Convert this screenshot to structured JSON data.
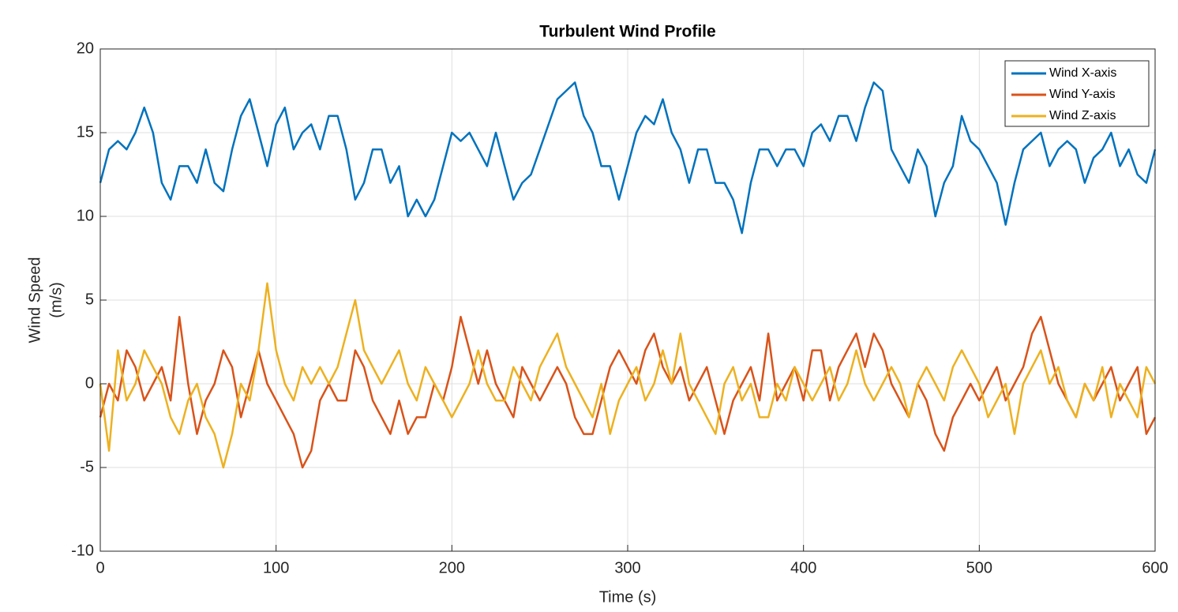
{
  "chart_data": {
    "type": "line",
    "title": "Turbulent Wind Profile",
    "xlabel": "Time (s)",
    "ylabel": [
      "Wind Speed",
      "(m/s)"
    ],
    "x": [
      0,
      5,
      10,
      15,
      20,
      25,
      30,
      35,
      40,
      45,
      50,
      55,
      60,
      65,
      70,
      75,
      80,
      85,
      90,
      95,
      100,
      105,
      110,
      115,
      120,
      125,
      130,
      135,
      140,
      145,
      150,
      155,
      160,
      165,
      170,
      175,
      180,
      185,
      190,
      195,
      200,
      205,
      210,
      215,
      220,
      225,
      230,
      235,
      240,
      245,
      250,
      255,
      260,
      265,
      270,
      275,
      280,
      285,
      290,
      295,
      300,
      305,
      310,
      315,
      320,
      325,
      330,
      335,
      340,
      345,
      350,
      355,
      360,
      365,
      370,
      375,
      380,
      385,
      390,
      395,
      400,
      405,
      410,
      415,
      420,
      425,
      430,
      435,
      440,
      445,
      450,
      455,
      460,
      465,
      470,
      475,
      480,
      485,
      490,
      495,
      500,
      505,
      510,
      515,
      520,
      525,
      530,
      535,
      540,
      545,
      550,
      555,
      560,
      565,
      570,
      575,
      580,
      585,
      590,
      595,
      600
    ],
    "series": [
      {
        "name": "Wind X-axis",
        "color": "#0072BD",
        "values": [
          12,
          14,
          14.5,
          14,
          15,
          16.5,
          15,
          12,
          11,
          13,
          13,
          12,
          14,
          12,
          11.5,
          14,
          16,
          17,
          15,
          13,
          15.5,
          16.5,
          14,
          15,
          15.5,
          14,
          16,
          16,
          14,
          11,
          12,
          14,
          14,
          12,
          13,
          10,
          11,
          10,
          11,
          13,
          15,
          14.5,
          15,
          14,
          13,
          15,
          13,
          11,
          12,
          12.5,
          14,
          15.5,
          17,
          17.5,
          18,
          16,
          15,
          13,
          13,
          11,
          13,
          15,
          16,
          15.5,
          17,
          15,
          14,
          12,
          14,
          14,
          12,
          12,
          11,
          9,
          12,
          14,
          14,
          13,
          14,
          14,
          13,
          15,
          15.5,
          14.5,
          16,
          16,
          14.5,
          16.5,
          18,
          17.5,
          14,
          13,
          12,
          14,
          13,
          10,
          12,
          13,
          16,
          14.5,
          14,
          13,
          12,
          9.5,
          12,
          14,
          14.5,
          15,
          13,
          14,
          14.5,
          14,
          12,
          13.5,
          14,
          15,
          13,
          14,
          12.5,
          12,
          14
        ]
      },
      {
        "name": "Wind Y-axis",
        "color": "#D95319",
        "values": [
          -2,
          0,
          -1,
          2,
          1,
          -1,
          0,
          1,
          -1,
          4,
          0,
          -3,
          -1,
          0,
          2,
          1,
          -2,
          0,
          2,
          0,
          -1,
          -2,
          -3,
          -5,
          -4,
          -1,
          0,
          -1,
          -1,
          2,
          1,
          -1,
          -2,
          -3,
          -1,
          -3,
          -2,
          -2,
          0,
          -1,
          1,
          4,
          2,
          0,
          2,
          0,
          -1,
          -2,
          1,
          0,
          -1,
          0,
          1,
          0,
          -2,
          -3,
          -3,
          -1,
          1,
          2,
          1,
          0,
          2,
          3,
          1,
          0,
          1,
          -1,
          0,
          1,
          -1,
          -3,
          -1,
          0,
          1,
          -1,
          3,
          -1,
          0,
          1,
          -1,
          2,
          2,
          -1,
          1,
          2,
          3,
          1,
          3,
          2,
          0,
          -1,
          -2,
          0,
          -1,
          -3,
          -4,
          -2,
          -1,
          0,
          -1,
          0,
          1,
          -1,
          0,
          1,
          3,
          4,
          2,
          0,
          -1,
          -2,
          0,
          -1,
          0,
          1,
          -1,
          0,
          1,
          -3,
          -2
        ]
      },
      {
        "name": "Wind Z-axis",
        "color": "#EDB120",
        "values": [
          0,
          -4,
          2,
          -1,
          0,
          2,
          1,
          0,
          -2,
          -3,
          -1,
          0,
          -2,
          -3,
          -5,
          -3,
          0,
          -1,
          2,
          6,
          2,
          0,
          -1,
          1,
          0,
          1,
          0,
          1,
          3,
          5,
          2,
          1,
          0,
          1,
          2,
          0,
          -1,
          1,
          0,
          -1,
          -2,
          -1,
          0,
          2,
          0,
          -1,
          -1,
          1,
          0,
          -1,
          1,
          2,
          3,
          1,
          0,
          -1,
          -2,
          0,
          -3,
          -1,
          0,
          1,
          -1,
          0,
          2,
          0,
          3,
          0,
          -1,
          -2,
          -3,
          0,
          1,
          -1,
          0,
          -2,
          -2,
          0,
          -1,
          1,
          0,
          -1,
          0,
          1,
          -1,
          0,
          2,
          0,
          -1,
          0,
          1,
          0,
          -2,
          0,
          1,
          0,
          -1,
          1,
          2,
          1,
          0,
          -2,
          -1,
          0,
          -3,
          0,
          1,
          2,
          0,
          1,
          -1,
          -2,
          0,
          -1,
          1,
          -2,
          0,
          -1,
          -2,
          1,
          0
        ]
      }
    ],
    "xlim": [
      0,
      600
    ],
    "xticks": [
      0,
      100,
      200,
      300,
      400,
      500,
      600
    ],
    "ylim": [
      -10,
      20
    ],
    "yticks": [
      -10,
      -5,
      0,
      5,
      10,
      15,
      20
    ],
    "grid": true,
    "legend": "upper right"
  }
}
